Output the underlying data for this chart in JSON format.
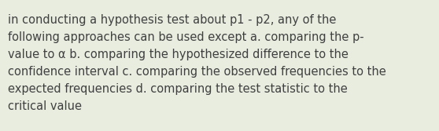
{
  "lines": [
    "in conducting a hypothesis test about p1 - p2, any of the",
    "following approaches can be used except a. comparing the p-",
    "value to α b. comparing the hypothesized difference to the",
    "confidence interval c. comparing the observed frequencies to the",
    "expected frequencies d. comparing the test statistic to the",
    "critical value"
  ],
  "background_color": "#e8ede0",
  "text_color": "#404040",
  "font_size": 10.5,
  "fig_width": 5.58,
  "fig_height": 1.67,
  "dpi": 100
}
